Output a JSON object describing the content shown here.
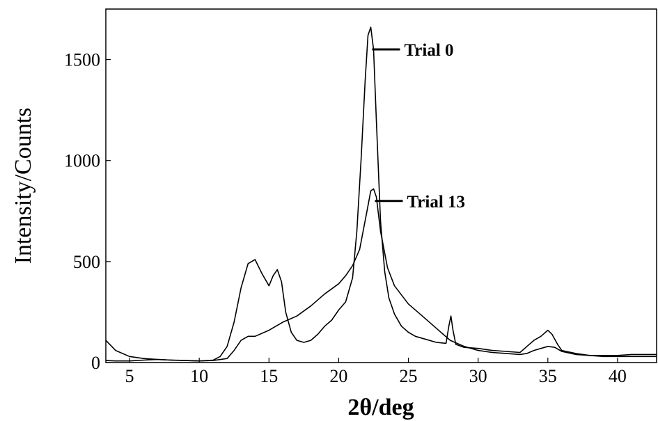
{
  "chart_data": {
    "type": "line",
    "title": "",
    "xlabel": "2θ/deg",
    "ylabel": "Intensity/Counts",
    "xlim": [
      3.3,
      42.8
    ],
    "ylim": [
      0,
      1750
    ],
    "xticks": [
      5,
      10,
      15,
      20,
      25,
      30,
      35,
      40
    ],
    "yticks": [
      0,
      500,
      1000,
      1500
    ],
    "grid": false,
    "legend": "none",
    "line_color": "#000000",
    "series": [
      {
        "name": "Trial 0",
        "x": [
          3.3,
          4,
          5,
          6,
          7,
          8,
          9,
          10,
          11,
          11.5,
          12,
          12.5,
          13,
          13.5,
          14,
          14.5,
          15,
          15.3,
          15.6,
          15.9,
          16.2,
          16.6,
          17,
          17.5,
          18,
          18.5,
          19,
          19.5,
          20,
          20.5,
          21,
          21.3,
          21.6,
          21.9,
          22.1,
          22.3,
          22.5,
          22.7,
          23,
          23.3,
          23.6,
          24,
          24.5,
          25,
          25.5,
          26,
          27,
          27.7,
          27.9,
          28.05,
          28.2,
          28.4,
          29,
          30,
          31,
          32,
          33,
          33.5,
          34,
          34.5,
          35,
          35.3,
          35.7,
          36,
          37,
          38,
          39,
          40,
          41,
          42,
          42.8
        ],
        "y": [
          10,
          8,
          8,
          12,
          15,
          12,
          10,
          8,
          12,
          30,
          80,
          200,
          370,
          490,
          510,
          440,
          380,
          430,
          460,
          400,
          250,
          150,
          110,
          100,
          110,
          140,
          180,
          210,
          260,
          300,
          420,
          650,
          1000,
          1400,
          1620,
          1660,
          1550,
          1200,
          700,
          450,
          320,
          240,
          180,
          150,
          130,
          120,
          100,
          95,
          180,
          230,
          160,
          90,
          75,
          70,
          60,
          55,
          50,
          80,
          110,
          130,
          160,
          140,
          90,
          60,
          45,
          35,
          30,
          30,
          30,
          30,
          30
        ]
      },
      {
        "name": "Trial 13",
        "x": [
          3.3,
          4,
          5,
          6,
          7,
          8,
          9,
          10,
          11,
          12,
          12.5,
          13,
          13.5,
          14,
          15,
          16,
          17,
          18,
          19,
          20,
          20.5,
          21,
          21.5,
          22,
          22.3,
          22.5,
          22.7,
          23,
          23.5,
          24,
          25,
          26,
          27,
          28,
          29,
          30,
          31,
          32,
          33,
          33.5,
          34,
          35,
          35.5,
          36,
          37,
          38,
          39,
          40,
          41,
          42,
          42.8
        ],
        "y": [
          110,
          60,
          30,
          20,
          15,
          12,
          10,
          8,
          10,
          20,
          60,
          110,
          130,
          130,
          160,
          200,
          230,
          280,
          340,
          390,
          430,
          480,
          560,
          740,
          850,
          860,
          820,
          650,
          470,
          380,
          290,
          230,
          170,
          110,
          80,
          60,
          50,
          45,
          40,
          45,
          60,
          80,
          75,
          55,
          40,
          35,
          35,
          35,
          40,
          40,
          40
        ]
      }
    ],
    "annotations": [
      {
        "text": "Trial 0",
        "x": 22.3,
        "y": 1550
      },
      {
        "text": "Trial 13",
        "x": 22.5,
        "y": 800
      }
    ]
  }
}
